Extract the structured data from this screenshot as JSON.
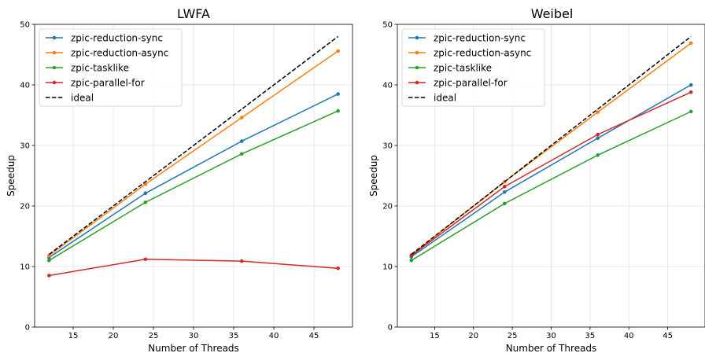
{
  "chart_data": [
    {
      "type": "line",
      "title": "LWFA",
      "xlabel": "Number of Threads",
      "ylabel": "Speedup",
      "xlim": [
        10.2,
        49.8
      ],
      "ylim": [
        0,
        50
      ],
      "xticks": [
        "15",
        "20",
        "25",
        "30",
        "35",
        "40",
        "45"
      ],
      "yticks": [
        "0",
        "10",
        "20",
        "30",
        "40",
        "50"
      ],
      "grid": true,
      "legend_position": "top-left",
      "x": [
        12,
        24,
        36,
        48
      ],
      "series": [
        {
          "name": "zpic-reduction-sync",
          "color": "#1f77b4",
          "style": "solid",
          "marker": true,
          "values": [
            11.5,
            22.1,
            30.7,
            38.5
          ]
        },
        {
          "name": "zpic-reduction-async",
          "color": "#ff7f0e",
          "style": "solid",
          "marker": true,
          "values": [
            11.8,
            23.6,
            34.6,
            45.6
          ]
        },
        {
          "name": "zpic-tasklike",
          "color": "#2ca02c",
          "style": "solid",
          "marker": true,
          "values": [
            11.0,
            20.6,
            28.6,
            35.7
          ]
        },
        {
          "name": "zpic-parallel-for",
          "color": "#d62728",
          "style": "solid",
          "marker": true,
          "values": [
            8.5,
            11.2,
            10.9,
            9.7
          ]
        },
        {
          "name": "ideal",
          "color": "#000000",
          "style": "dashed",
          "marker": false,
          "values": [
            12,
            24,
            36,
            48
          ]
        }
      ]
    },
    {
      "type": "line",
      "title": "Weibel",
      "xlabel": "Number of Threads",
      "ylabel": "Speedup",
      "xlim": [
        10.2,
        49.8
      ],
      "ylim": [
        0,
        50
      ],
      "xticks": [
        "15",
        "20",
        "25",
        "30",
        "35",
        "40",
        "45"
      ],
      "yticks": [
        "0",
        "10",
        "20",
        "30",
        "40",
        "50"
      ],
      "grid": true,
      "legend_position": "top-left",
      "x": [
        12,
        24,
        36,
        48
      ],
      "series": [
        {
          "name": "zpic-reduction-sync",
          "color": "#1f77b4",
          "style": "solid",
          "marker": true,
          "values": [
            11.6,
            22.3,
            31.2,
            40.0
          ]
        },
        {
          "name": "zpic-reduction-async",
          "color": "#ff7f0e",
          "style": "solid",
          "marker": true,
          "values": [
            11.9,
            24.0,
            35.5,
            46.9
          ]
        },
        {
          "name": "zpic-tasklike",
          "color": "#2ca02c",
          "style": "solid",
          "marker": true,
          "values": [
            11.0,
            20.4,
            28.4,
            35.6
          ]
        },
        {
          "name": "zpic-parallel-for",
          "color": "#d62728",
          "style": "solid",
          "marker": true,
          "values": [
            11.8,
            23.2,
            31.8,
            38.8
          ]
        },
        {
          "name": "ideal",
          "color": "#000000",
          "style": "dashed",
          "marker": false,
          "values": [
            12,
            24,
            36,
            48
          ]
        }
      ]
    }
  ]
}
